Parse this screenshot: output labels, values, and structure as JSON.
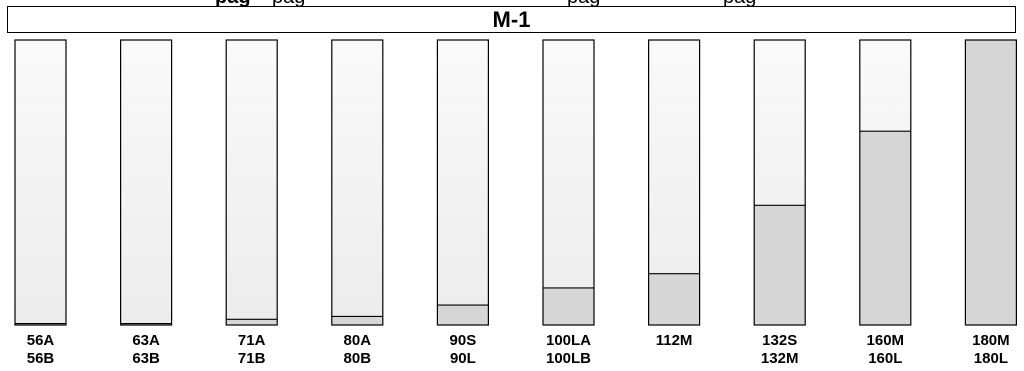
{
  "header_strip": {
    "parts": [
      {
        "text": "pag",
        "bold": true
      },
      {
        "text": "pag",
        "bold": false
      },
      {
        "text": "pag",
        "bold": false
      },
      {
        "text": "pag",
        "bold": false
      }
    ]
  },
  "chart_data": {
    "type": "bar",
    "title": "M-1",
    "categories": [
      "56A\n56B",
      "63A\n63B",
      "71A\n71B",
      "80A\n80B",
      "90S\n90L",
      "100LA\n100LB",
      "112M",
      "132S\n132M",
      "160M\n160L",
      "180M\n180L"
    ],
    "category_lines": [
      [
        "56A",
        "56B"
      ],
      [
        "63A",
        "63B"
      ],
      [
        "71A",
        "71B"
      ],
      [
        "80A",
        "80B"
      ],
      [
        "90S",
        "90L"
      ],
      [
        "100LA",
        "100LB"
      ],
      [
        "112M",
        ""
      ],
      [
        "132S",
        "132M"
      ],
      [
        "160M",
        "160L"
      ],
      [
        "180M",
        "180L"
      ]
    ],
    "values": [
      0.5,
      0.5,
      2,
      3,
      7,
      13,
      18,
      42,
      68,
      100
    ],
    "unit": "percent of column filled",
    "ylim": [
      0,
      100
    ],
    "grid": false,
    "legend": "none",
    "colors": {
      "fill": "#d6d6d6",
      "empty_top": "#fafafa",
      "empty_bottom": "#ececec",
      "outline": "#000000"
    }
  }
}
